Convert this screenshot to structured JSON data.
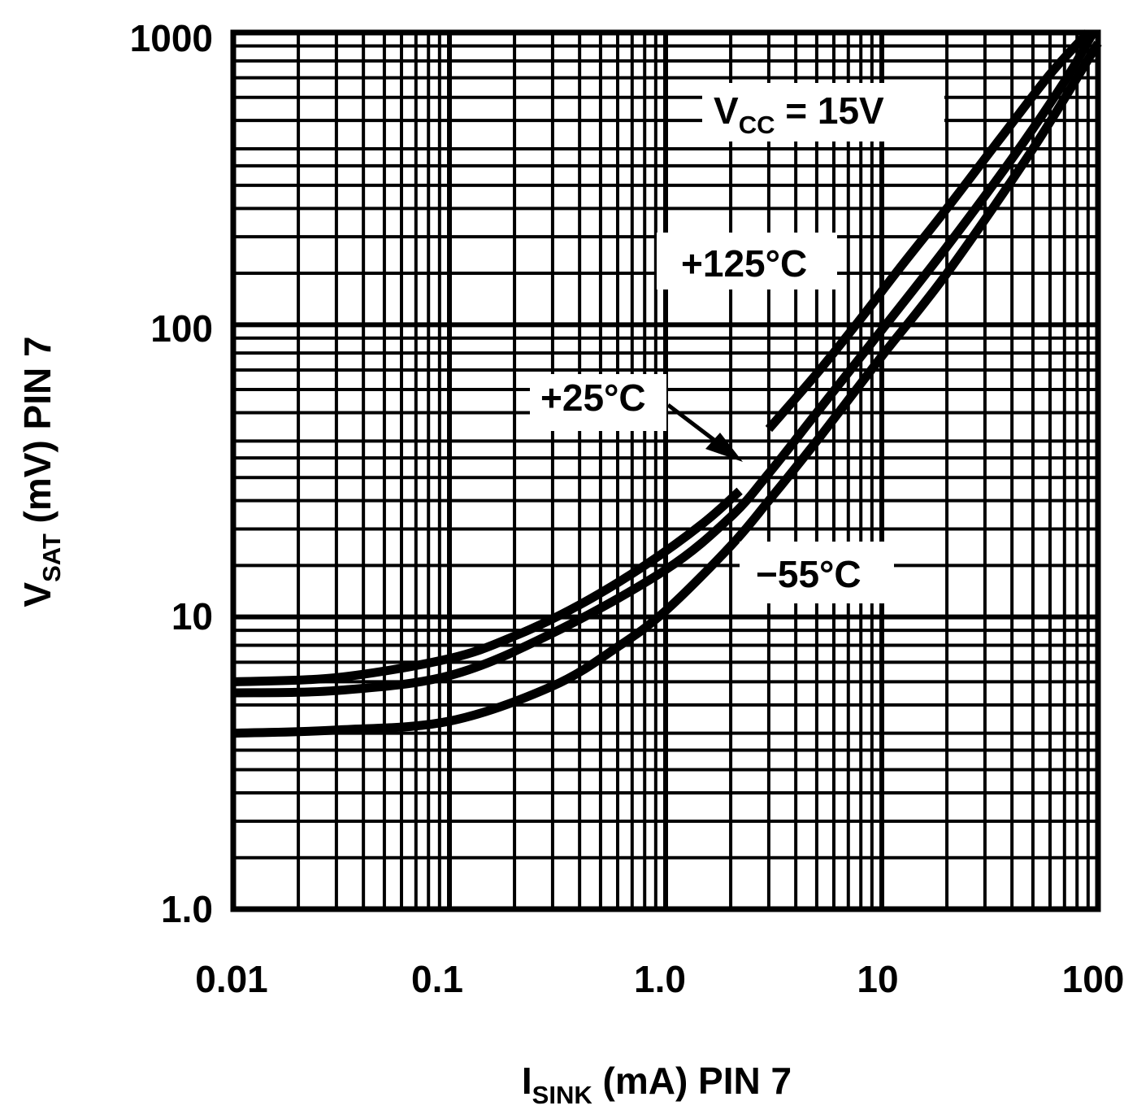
{
  "chart_data": {
    "type": "line",
    "title": "",
    "xlabel": {
      "main": "I",
      "sub": "SINK",
      "rest": " (mA) PIN 7"
    },
    "ylabel": {
      "main": "V",
      "sub": "SAT",
      "rest": " (mV) PIN 7"
    },
    "xscale": "log",
    "yscale": "log",
    "xlim": [
      0.01,
      100
    ],
    "ylim": [
      1.0,
      1000
    ],
    "xticks": [
      0.01,
      0.1,
      1.0,
      10,
      100
    ],
    "xtick_labels": [
      "0.01",
      "0.1",
      "1.0",
      "10",
      "100"
    ],
    "yticks": [
      1.0,
      10,
      100,
      1000
    ],
    "ytick_labels": [
      "1.0",
      "10",
      "100",
      "1000"
    ],
    "grid": true,
    "annotation": {
      "main": "V",
      "sub": "CC",
      "rest": " = 15V"
    },
    "series": [
      {
        "name": "+125°C",
        "x": [
          0.01,
          0.03,
          0.1,
          0.2,
          0.4,
          0.8,
          1.5,
          2.2
        ],
        "y": [
          6.0,
          6.2,
          7.2,
          8.6,
          11.0,
          15.0,
          21.0,
          27.0
        ]
      },
      {
        "name": "+125°C",
        "x": [
          3.0,
          5.0,
          8.0,
          12,
          20,
          35,
          60,
          90
        ],
        "y": [
          44.0,
          68.0,
          105.0,
          155.0,
          250.0,
          430.0,
          720.0,
          1000.0
        ]
      },
      {
        "name": "+25°C",
        "x": [
          0.01,
          0.03,
          0.1,
          0.3,
          1.0,
          2.0,
          3.0,
          5.0,
          10,
          20,
          40,
          70,
          95
        ],
        "y": [
          5.5,
          5.6,
          6.3,
          8.8,
          14.5,
          22.0,
          31.0,
          50.0,
          96.0,
          185.0,
          370.0,
          680.0,
          1000.0
        ]
      },
      {
        "name": "−55°C",
        "x": [
          0.01,
          0.03,
          0.1,
          0.3,
          0.6,
          1.0,
          2.0,
          3.0,
          5.0,
          10,
          20,
          50,
          100
        ],
        "y": [
          4.0,
          4.1,
          4.4,
          5.8,
          7.9,
          10.5,
          17.5,
          25.0,
          40.0,
          78.0,
          150.0,
          400.0,
          920.0
        ]
      }
    ],
    "labels": [
      {
        "text": "+125°C"
      },
      {
        "text": "+25°C"
      },
      {
        "text": "−55°C"
      }
    ]
  }
}
